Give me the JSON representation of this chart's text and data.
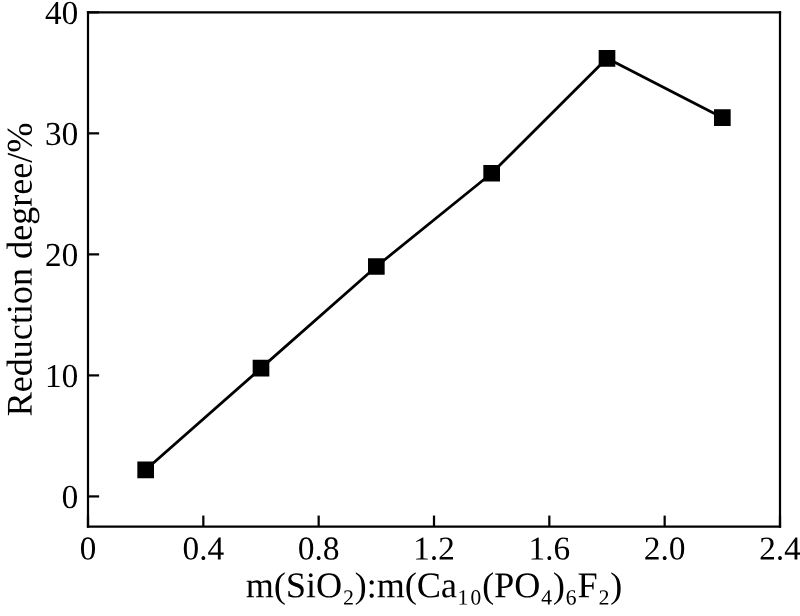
{
  "chart_data": {
    "type": "line",
    "xlabel": "m(SiO₂):m(Ca₁₀(PO₄)₆F₂)",
    "ylabel": "Reduction degree/%",
    "x": [
      0.2,
      0.6,
      1.0,
      1.4,
      1.8,
      2.2
    ],
    "series": [
      {
        "color": "#000000",
        "values": [
          2.2,
          10.6,
          19.0,
          26.7,
          36.2,
          31.3
        ]
      }
    ],
    "xlim": [
      0,
      2.4
    ],
    "xticks": [
      {
        "value": 0,
        "label": "0"
      },
      0.4,
      0.8,
      1.2,
      1.6,
      {
        "value": 2,
        "label": "2.0"
      },
      2.4
    ],
    "ylim": [
      -2.5,
      40
    ],
    "yticks": [
      0,
      10,
      20,
      30,
      40
    ],
    "marker": "square",
    "line_style": "solid",
    "grid": false,
    "legend": false
  }
}
